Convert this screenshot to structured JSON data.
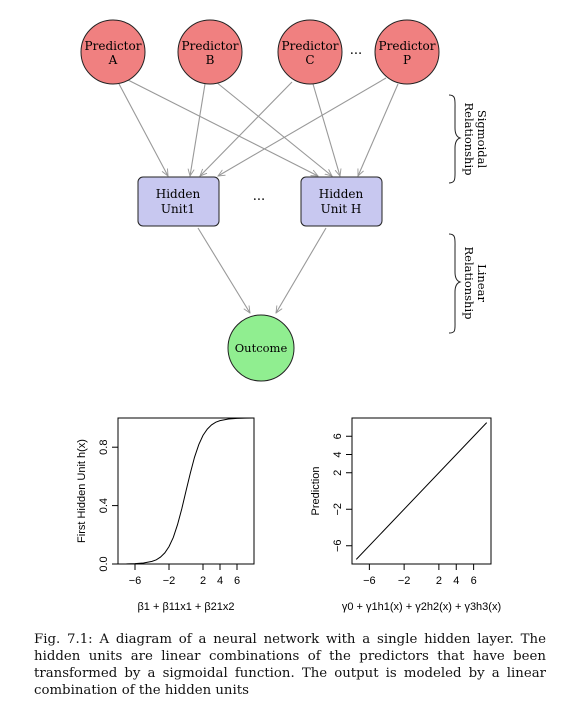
{
  "diagram": {
    "predictors": [
      {
        "line1": "Predictor",
        "line2": "A"
      },
      {
        "line1": "Predictor",
        "line2": "B"
      },
      {
        "line1": "Predictor",
        "line2": "C"
      },
      {
        "line1": "Predictor",
        "line2": "P"
      }
    ],
    "predictor_ellipsis": "...",
    "hidden_units": [
      {
        "line1": "Hidden",
        "line2": "Unit1"
      },
      {
        "line1": "Hidden",
        "line2": "Unit H"
      }
    ],
    "hidden_ellipsis": "...",
    "outcome": "Outcome",
    "brace_sigmoidal": {
      "line1": "Sigmoidal",
      "line2": "Relationship"
    },
    "brace_linear": {
      "line1": "Linear",
      "line2": "Relationship"
    },
    "colors": {
      "predictor_fill": "#f08080",
      "hidden_fill": "#c8c8f0",
      "outcome_fill": "#90ee90",
      "arrow": "#999999"
    }
  },
  "chart_data": [
    {
      "type": "line",
      "title": "",
      "xlabel": "β1 + β11x1 + β21x2",
      "ylabel": "First Hidden Unit h(x)",
      "xlim": [
        -8,
        8
      ],
      "ylim": [
        0,
        1
      ],
      "xticks": [
        -6,
        -2,
        2,
        4,
        6
      ],
      "xtick_labels": [
        "−6",
        "−2",
        "2",
        "4",
        "6"
      ],
      "yticks": [
        0.0,
        0.4,
        0.8
      ],
      "ytick_labels": [
        "0.0",
        "0.4",
        "0.8"
      ],
      "series": [
        {
          "x": [
            -8,
            -7,
            -6,
            -5,
            -4,
            -3.5,
            -3,
            -2.5,
            -2,
            -1.5,
            -1,
            -0.5,
            0,
            0.5,
            1,
            1.5,
            2,
            2.5,
            3,
            3.5,
            4,
            5,
            6,
            7,
            8
          ],
          "y": [
            0.0003,
            0.0009,
            0.0025,
            0.0067,
            0.018,
            0.029,
            0.047,
            0.076,
            0.119,
            0.182,
            0.269,
            0.378,
            0.5,
            0.622,
            0.731,
            0.818,
            0.881,
            0.924,
            0.953,
            0.971,
            0.982,
            0.993,
            0.9975,
            0.9991,
            0.9997
          ]
        }
      ]
    },
    {
      "type": "line",
      "title": "",
      "xlabel": "γ0 + γ1h1(x) + γ2h2(x) + γ3h3(x)",
      "ylabel": "Prediction",
      "xlim": [
        -8,
        8
      ],
      "ylim": [
        -8,
        8
      ],
      "xticks": [
        -6,
        -2,
        2,
        4,
        6
      ],
      "xtick_labels": [
        "−6",
        "−2",
        "2",
        "4",
        "6"
      ],
      "yticks": [
        -6,
        -2,
        2,
        4,
        6
      ],
      "ytick_labels": [
        "−6",
        "−2",
        "2",
        "4",
        "6"
      ],
      "series": [
        {
          "x": [
            -7.5,
            7.5
          ],
          "y": [
            -7.5,
            7.5
          ]
        }
      ]
    }
  ],
  "caption": "Fig. 7.1: A diagram of a neural network with a single hidden layer. The hidden units are linear combinations of the predictors that have been transformed by a sigmoidal function. The output is modeled by a linear combination of the hidden units"
}
